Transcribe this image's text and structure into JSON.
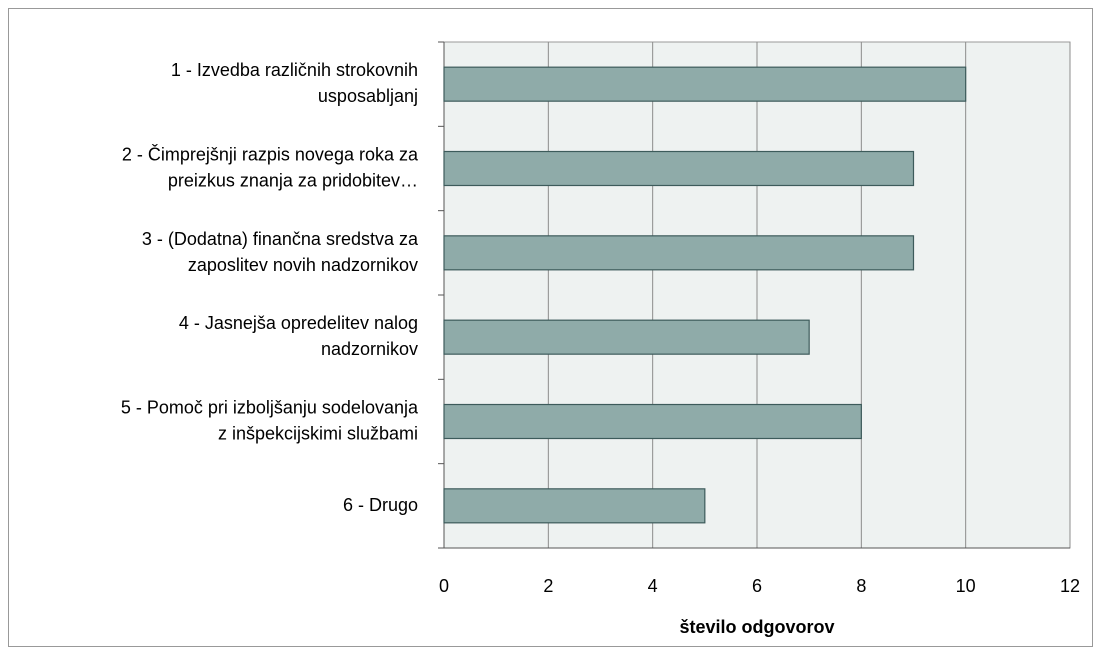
{
  "chart_data": {
    "type": "barh",
    "categories": [
      "1 - Izvedba različnih strokovnih\nusposabljanj",
      "2 - Čimprejšnji razpis novega roka za\npreizkus znanja za pridobitev…",
      "3 - (Dodatna) finančna sredstva za\nzaposlitev novih nadzornikov",
      "4 - Jasnejša opredelitev nalog\nnadzornikov",
      "5 - Pomoč pri izboljšanju sodelovanja\nz inšpekcijskimi službami",
      "6 - Drugo"
    ],
    "values": [
      10,
      9,
      9,
      7,
      8,
      5
    ],
    "color": "#8faba9",
    "xlabel": "število odgovorov",
    "xlim": [
      0,
      12
    ],
    "xticks": [
      0,
      2,
      4,
      6,
      8,
      10,
      12
    ],
    "grid": true
  }
}
